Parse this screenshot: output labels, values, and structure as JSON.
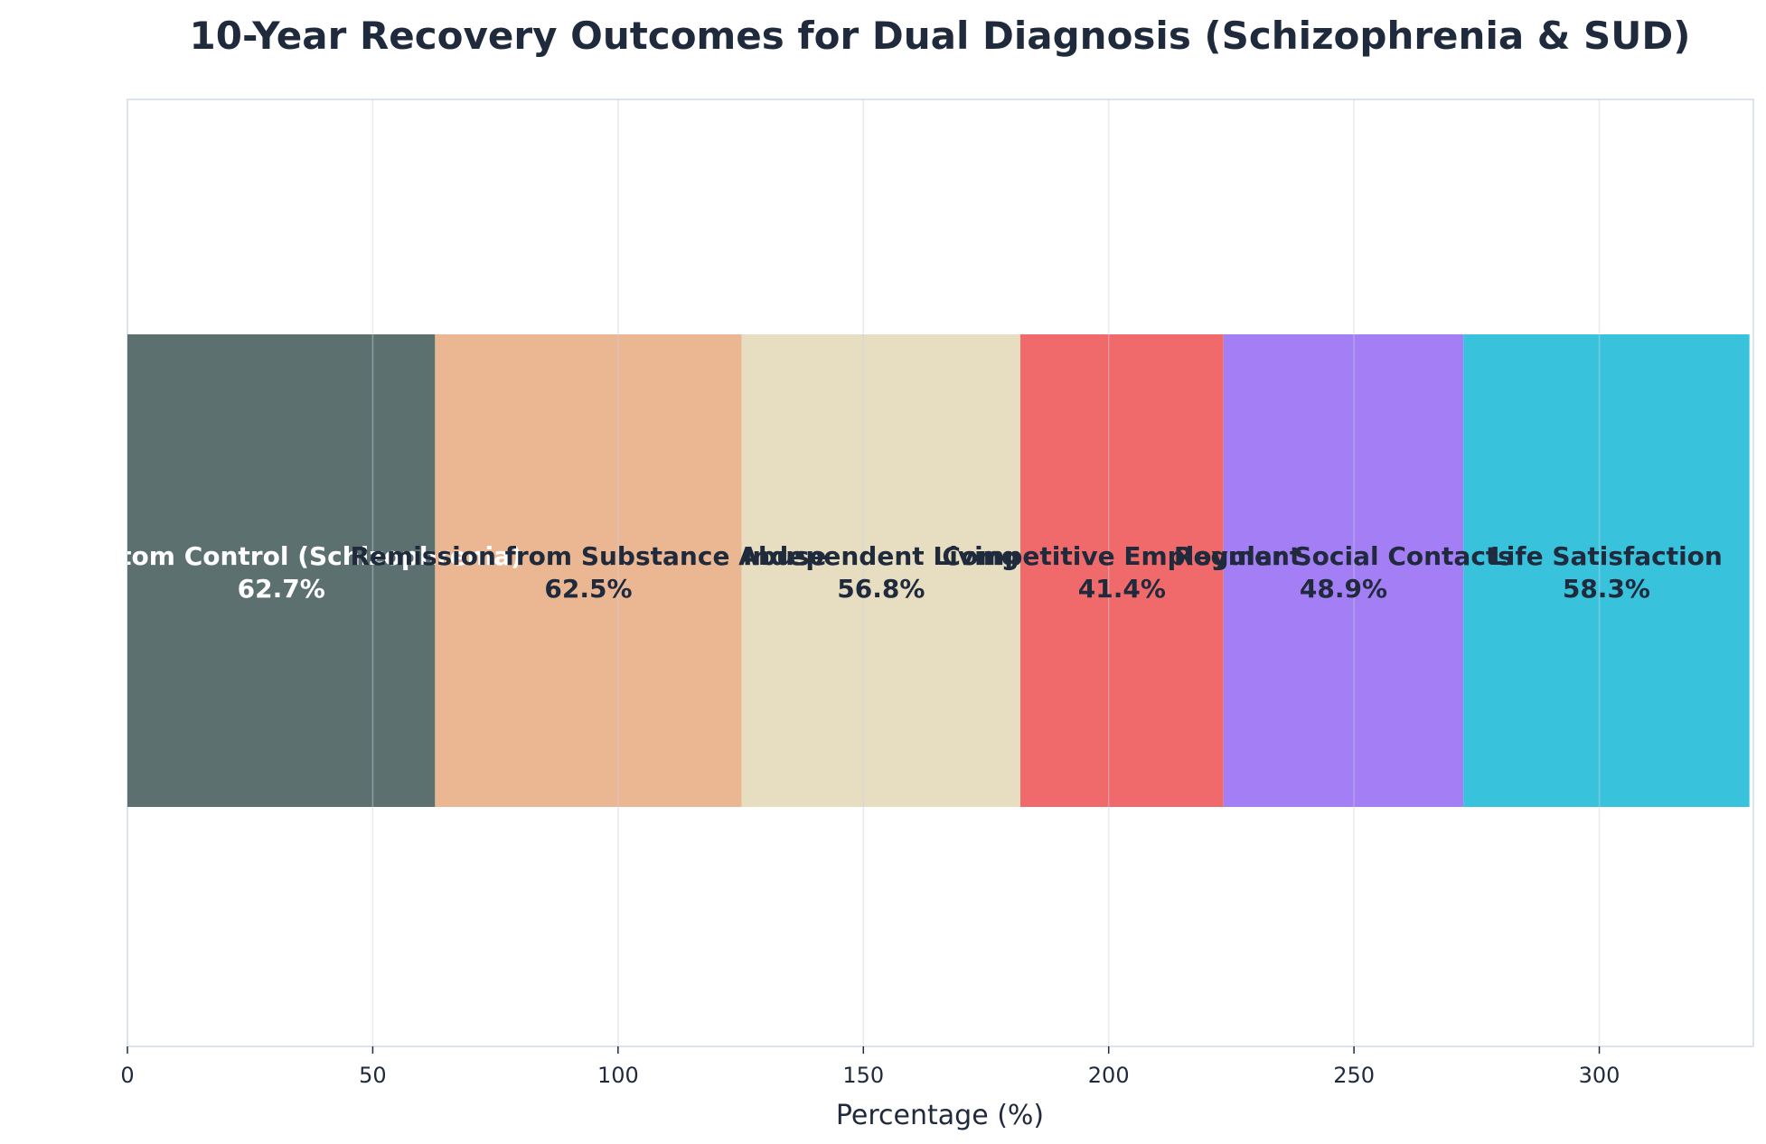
{
  "chart_data": {
    "type": "bar",
    "orientation": "horizontal",
    "stacked": true,
    "title": "10-Year Recovery Outcomes for Dual Diagnosis (Schizophrenia & SUD)",
    "xlabel": "Percentage (%)",
    "ylabel": "",
    "xlim": [
      0,
      331.4
    ],
    "xticks": [
      0,
      50,
      100,
      150,
      200,
      250,
      300
    ],
    "grid": true,
    "segments": [
      {
        "category": "Symptom Control (Schizophrenia)",
        "value": 62.7,
        "label": "62.7%",
        "color": "#5d7070",
        "text_color": "#ffffff"
      },
      {
        "category": "Remission from Substance Abuse",
        "value": 62.5,
        "label": "62.5%",
        "color": "#ebb792",
        "text_color": "#1f2a3c"
      },
      {
        "category": "Independent Living",
        "value": 56.8,
        "label": "56.8%",
        "color": "#e7dec1",
        "text_color": "#1f2a3c"
      },
      {
        "category": "Competitive Employment",
        "value": 41.4,
        "label": "41.4%",
        "color": "#f06a6b",
        "text_color": "#1f2a3c"
      },
      {
        "category": "Regular Social Contacts",
        "value": 48.9,
        "label": "48.9%",
        "color": "#a37ef5",
        "text_color": "#1f2a3c"
      },
      {
        "category": "Life Satisfaction",
        "value": 58.3,
        "label": "58.3%",
        "color": "#38c2dc",
        "text_color": "#1f2a3c"
      }
    ]
  }
}
